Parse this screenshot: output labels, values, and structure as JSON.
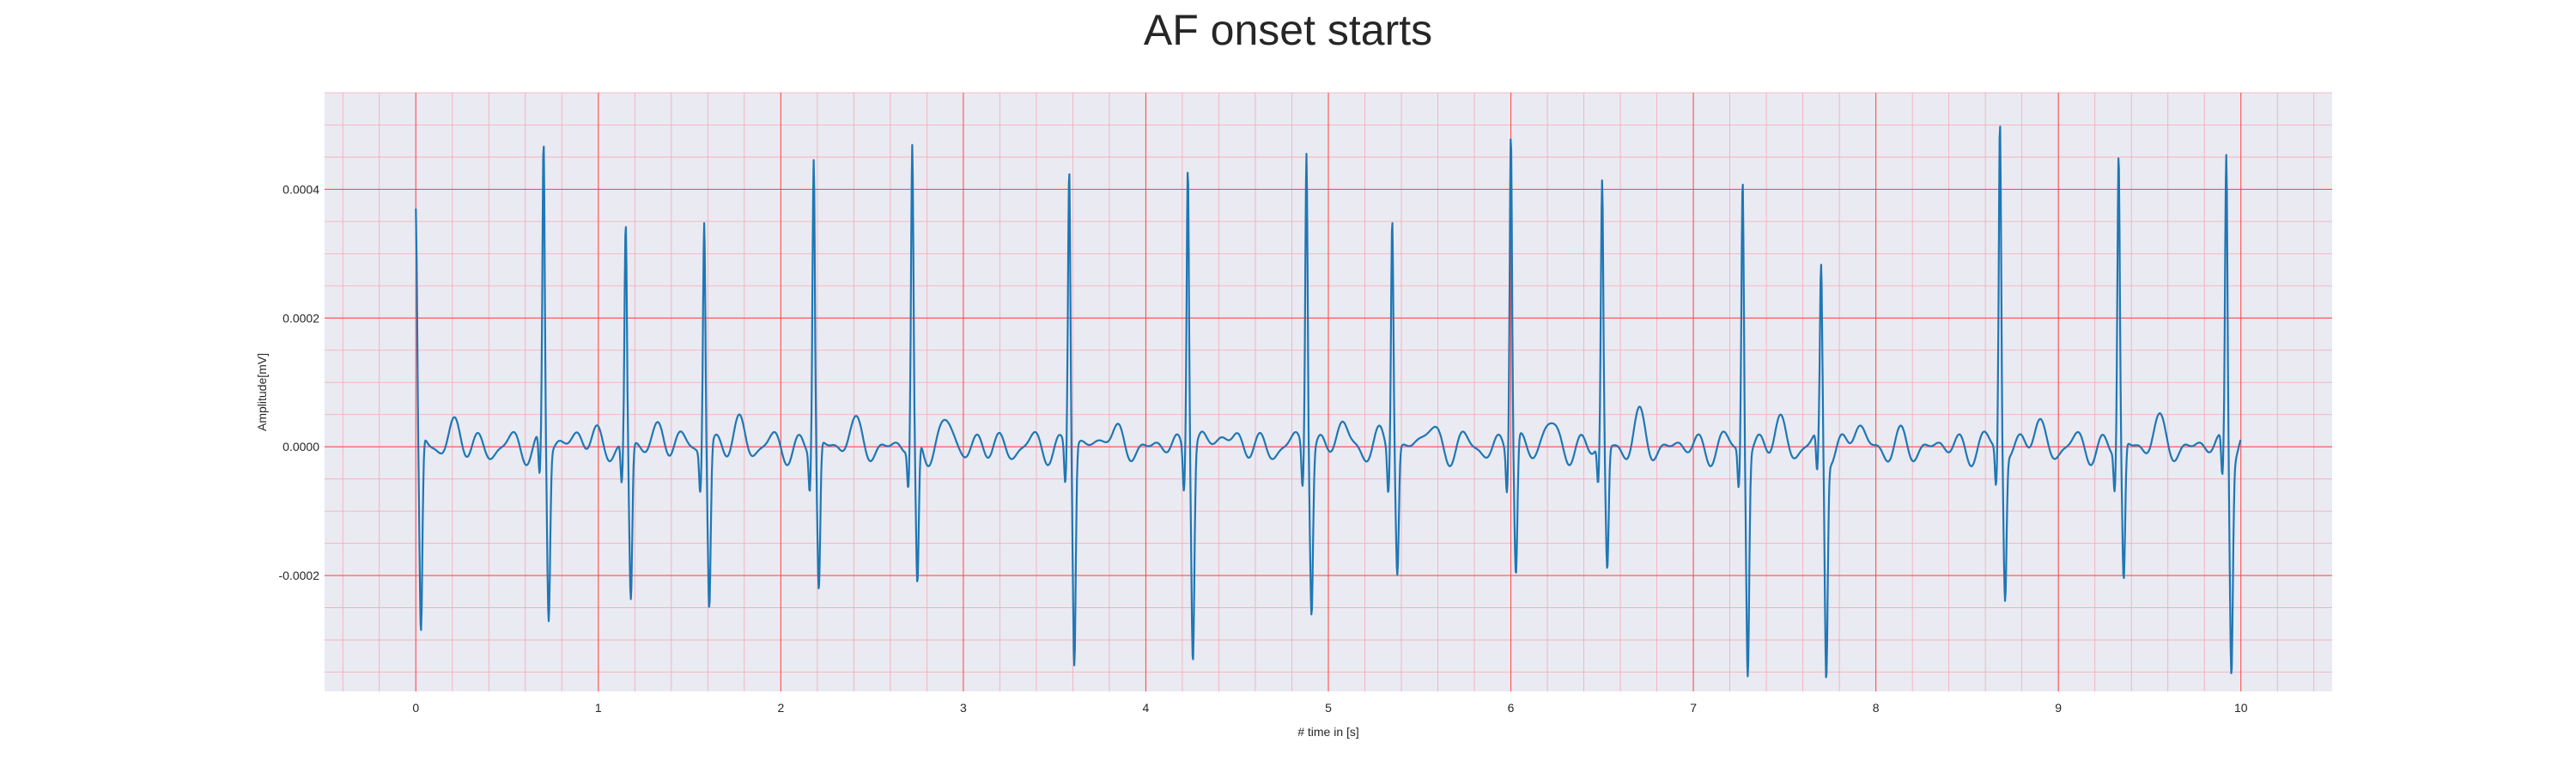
{
  "chart_data": {
    "type": "line",
    "title": "AF onset starts",
    "xlabel": "# time in [s]",
    "ylabel": "Amplitude[mV]",
    "xlim": [
      -0.5,
      10.5
    ],
    "ylim": [
      -0.00038,
      0.00055
    ],
    "xticks": [
      0,
      1,
      2,
      3,
      4,
      5,
      6,
      7,
      8,
      9,
      10
    ],
    "xtick_labels": [
      "0",
      "1",
      "2",
      "3",
      "4",
      "5",
      "6",
      "7",
      "8",
      "9",
      "10"
    ],
    "yticks": [
      -0.0002,
      0.0,
      0.0002,
      0.0004
    ],
    "ytick_labels": [
      "-0.0002",
      "0.0000",
      "0.0002",
      "0.0004"
    ],
    "grid": true,
    "background_color": "#eaeaf2",
    "major_grid_color": "#ff5050",
    "minor_grid_color": "#f4a9b4",
    "series_color": "#1f77b4",
    "beats": [
      {
        "t": 0.0,
        "r": 0.00037,
        "s": -0.00031
      },
      {
        "t": 0.7,
        "r": 0.00047,
        "s": -0.00026
      },
      {
        "t": 1.15,
        "r": 0.000345,
        "s": -0.00024
      },
      {
        "t": 1.58,
        "r": 0.000365,
        "s": -0.000245
      },
      {
        "t": 2.18,
        "r": 0.00045,
        "s": -0.00023
      },
      {
        "t": 2.72,
        "r": 0.00046,
        "s": -0.00023
      },
      {
        "t": 3.58,
        "r": 0.00044,
        "s": -0.000335
      },
      {
        "t": 4.23,
        "r": 0.00046,
        "s": -0.000315
      },
      {
        "t": 4.88,
        "r": 0.00048,
        "s": -0.00024
      },
      {
        "t": 5.35,
        "r": 0.000375,
        "s": -0.00019
      },
      {
        "t": 6.0,
        "r": 0.0005,
        "s": -0.000205
      },
      {
        "t": 6.5,
        "r": 0.000405,
        "s": -0.000195
      },
      {
        "t": 7.27,
        "r": 0.000425,
        "s": -0.00034
      },
      {
        "t": 7.7,
        "r": 0.00027,
        "s": -0.000345
      },
      {
        "t": 8.68,
        "r": 0.00051,
        "s": -0.000225
      },
      {
        "t": 9.33,
        "r": 0.000455,
        "s": -0.000215
      },
      {
        "t": 9.92,
        "r": 0.00046,
        "s": -0.000325
      }
    ],
    "x_end": 10.0
  }
}
